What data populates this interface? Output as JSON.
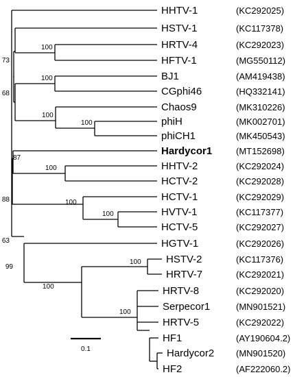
{
  "tree": {
    "leaves": [
      {
        "name": "HHTV-1",
        "accession": "(KC292025)",
        "bold": false
      },
      {
        "name": "HSTV-1",
        "accession": "(KC117378)",
        "bold": false
      },
      {
        "name": "HRTV-4",
        "accession": "(KC292023)",
        "bold": false
      },
      {
        "name": "HFTV-1",
        "accession": "(MG550112)",
        "bold": false
      },
      {
        "name": "BJ1",
        "accession": "(AM419438)",
        "bold": false
      },
      {
        "name": "CGphi46",
        "accession": "(HQ332141)",
        "bold": false
      },
      {
        "name": "Chaos9",
        "accession": "(MK310226)",
        "bold": false
      },
      {
        "name": "phiH",
        "accession": "(MK002701)",
        "bold": false
      },
      {
        "name": "phiCH1",
        "accession": "(MK450543)",
        "bold": false
      },
      {
        "name": "Hardycor1",
        "accession": "(MT152698)",
        "bold": true
      },
      {
        "name": "HHTV-2",
        "accession": "(KC292024)",
        "bold": false
      },
      {
        "name": "HCTV-2",
        "accession": "(KC292028)",
        "bold": false
      },
      {
        "name": "HCTV-1",
        "accession": "(KC292029)",
        "bold": false
      },
      {
        "name": "HVTV-1",
        "accession": "(KC117377)",
        "bold": false
      },
      {
        "name": "HCTV-5",
        "accession": "(KC292027)",
        "bold": false
      },
      {
        "name": "HGTV-1",
        "accession": "(KC292026)",
        "bold": false
      },
      {
        "name": "HSTV-2",
        "accession": "(KC117376)",
        "bold": false
      },
      {
        "name": "HRTV-7",
        "accession": "(KC292021)",
        "bold": false
      },
      {
        "name": "HRTV-8",
        "accession": "(KC292020)",
        "bold": false
      },
      {
        "name": "Serpecor1",
        "accession": "(MN901521)",
        "bold": false
      },
      {
        "name": "HRTV-5",
        "accession": "(KC292022)",
        "bold": false
      },
      {
        "name": "HF1",
        "accession": "(AY190604.2)",
        "bold": false
      },
      {
        "name": "Hardycor2",
        "accession": "(MN901520)",
        "bold": false
      },
      {
        "name": "HF2",
        "accession": "(AF222060.2)",
        "bold": false
      }
    ],
    "support_values": [
      "73",
      "100",
      "68",
      "100",
      "100",
      "100",
      "87",
      "100",
      "88",
      "100",
      "100",
      "63",
      "99",
      "100",
      "100",
      "100"
    ],
    "scale_bar": {
      "label": "0.1"
    }
  }
}
